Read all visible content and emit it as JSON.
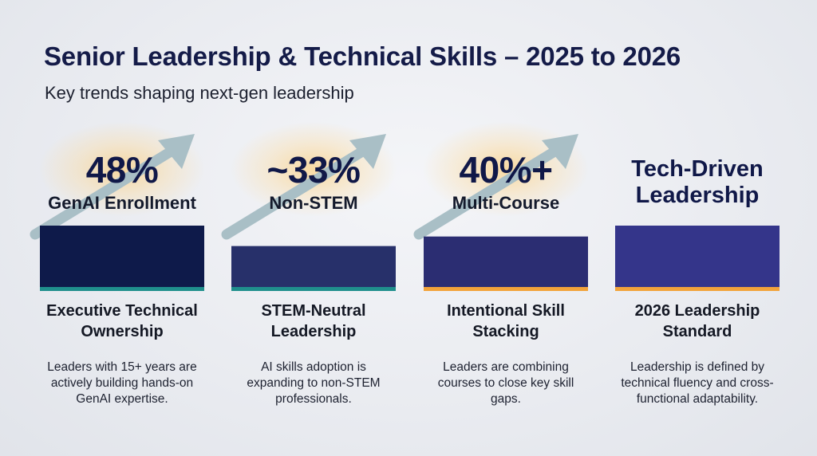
{
  "header": {
    "title": "Senior Leadership & Technical Skills – 2025 to 2026",
    "subtitle": "Key trends shaping next-gen leadership"
  },
  "cards": [
    {
      "stat": "48%",
      "stat_label": "GenAI Enrollment",
      "heading": "Executive Technical Ownership",
      "description": "Leaders with 15+ years are actively building hands-on GenAI expertise."
    },
    {
      "stat": "~33%",
      "stat_label": "Non-STEM",
      "heading": "STEM-Neutral Leadership",
      "description": "AI skills adoption is expanding to non-STEM professionals."
    },
    {
      "stat": "40%+",
      "stat_label": "Multi-Course",
      "heading": "Intentional Skill Stacking",
      "description": "Leaders are combining courses to close key skill gaps."
    },
    {
      "stat": "Tech-Driven Leadership",
      "stat_label": "",
      "heading": "2026 Leadership Standard",
      "description": "Leadership is defined by technical fluency and cross-functional adaptability."
    }
  ],
  "colors": {
    "title": "#141b48",
    "arrow": "#a9bfc6",
    "glow": "#ffc65f",
    "teal_accent": "#1f8f8c",
    "orange_accent": "#f2a33a"
  },
  "chart_data": {
    "type": "bar",
    "categories": [
      "48%",
      "~33%",
      "40%+",
      "Tech-Driven Leadership"
    ],
    "values": [
      48,
      33,
      40,
      48
    ],
    "ylim": [
      0,
      48
    ],
    "bar_colors": [
      "#0e1a4a",
      "#27306a",
      "#2b2d72",
      "#34358a"
    ],
    "accent_colors": [
      "#1f8f8c",
      "#1f8f8c",
      "#f2a33a",
      "#f2a33a"
    ],
    "grid": false
  }
}
